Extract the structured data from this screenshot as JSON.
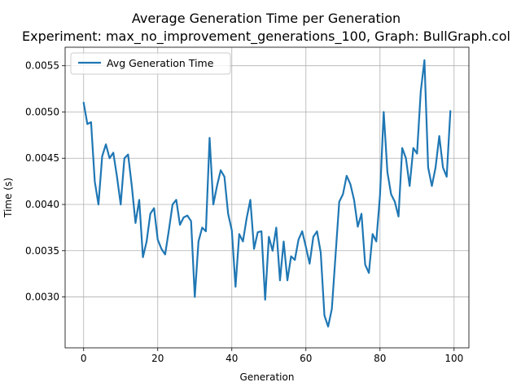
{
  "chart_data": {
    "type": "line",
    "title": "Average Generation Time per Generation",
    "subtitle": "Experiment: max_no_improvement_generations_100, Graph: BullGraph.col",
    "xlabel": "Generation",
    "ylabel": "Time (s)",
    "xlim": [
      -5,
      104
    ],
    "ylim": [
      0.00245,
      0.0057
    ],
    "x_ticks": [
      0,
      20,
      40,
      60,
      80,
      100
    ],
    "x_tick_labels": [
      "0",
      "20",
      "40",
      "60",
      "80",
      "100"
    ],
    "y_ticks": [
      0.003,
      0.0035,
      0.004,
      0.0045,
      0.005,
      0.0055
    ],
    "y_tick_labels": [
      "0.0030",
      "0.0035",
      "0.0040",
      "0.0045",
      "0.0050",
      "0.0055"
    ],
    "grid": true,
    "legend_position": "top-left",
    "series": [
      {
        "name": "Avg Generation Time",
        "color": "#1f77b4",
        "x": [
          0,
          1,
          2,
          3,
          4,
          5,
          6,
          7,
          8,
          9,
          10,
          11,
          12,
          13,
          14,
          15,
          16,
          17,
          18,
          19,
          20,
          21,
          22,
          23,
          24,
          25,
          26,
          27,
          28,
          29,
          30,
          31,
          32,
          33,
          34,
          35,
          36,
          37,
          38,
          39,
          40,
          41,
          42,
          43,
          44,
          45,
          46,
          47,
          48,
          49,
          50,
          51,
          52,
          53,
          54,
          55,
          56,
          57,
          58,
          59,
          60,
          61,
          62,
          63,
          64,
          65,
          66,
          67,
          68,
          69,
          70,
          71,
          72,
          73,
          74,
          75,
          76,
          77,
          78,
          79,
          80,
          81,
          82,
          83,
          84,
          85,
          86,
          87,
          88,
          89,
          90,
          91,
          92,
          93,
          94,
          95,
          96,
          97,
          98,
          99
        ],
        "values": [
          0.0051,
          0.00487,
          0.00489,
          0.00425,
          0.004,
          0.00452,
          0.00465,
          0.0045,
          0.00456,
          0.0043,
          0.004,
          0.0045,
          0.00454,
          0.0042,
          0.0038,
          0.00405,
          0.00343,
          0.0036,
          0.0039,
          0.00396,
          0.00362,
          0.00352,
          0.00346,
          0.00372,
          0.004,
          0.00405,
          0.00378,
          0.00386,
          0.00388,
          0.00382,
          0.003,
          0.0036,
          0.00375,
          0.00371,
          0.00472,
          0.004,
          0.0042,
          0.00437,
          0.0043,
          0.0039,
          0.00372,
          0.00311,
          0.00368,
          0.0036,
          0.00385,
          0.00405,
          0.00352,
          0.0037,
          0.00371,
          0.00297,
          0.00365,
          0.0035,
          0.00375,
          0.00318,
          0.0036,
          0.00318,
          0.00344,
          0.0034,
          0.00362,
          0.00371,
          0.00354,
          0.00336,
          0.00365,
          0.00371,
          0.00348,
          0.0028,
          0.00268,
          0.00287,
          0.00345,
          0.00403,
          0.00411,
          0.00431,
          0.00422,
          0.00405,
          0.00376,
          0.0039,
          0.00335,
          0.00326,
          0.00368,
          0.0036,
          0.0041,
          0.005,
          0.00435,
          0.00411,
          0.00403,
          0.00387,
          0.00461,
          0.0045,
          0.0042,
          0.00461,
          0.00455,
          0.00522,
          0.00556,
          0.0044,
          0.0042,
          0.0044,
          0.00474,
          0.0044,
          0.0043,
          0.00501
        ]
      }
    ]
  }
}
